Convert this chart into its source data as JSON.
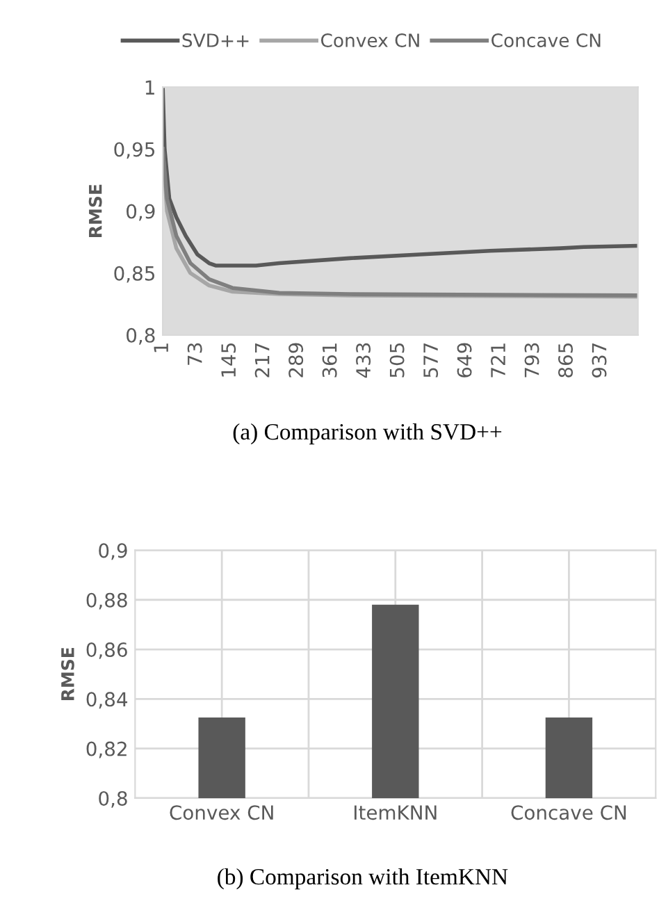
{
  "chart_data": [
    {
      "type": "line",
      "title": "(a) Comparison with SVD++",
      "ylabel": "RMSE",
      "legend": "top",
      "grid": false,
      "xlim": [
        1,
        1016
      ],
      "xticks": [
        1,
        73,
        145,
        217,
        289,
        361,
        433,
        505,
        577,
        649,
        721,
        793,
        865,
        937
      ],
      "ylim": [
        0.8,
        1
      ],
      "yticks": [
        {
          "value": 0.8,
          "label": "0,8"
        },
        {
          "value": 0.85,
          "label": "0,85"
        },
        {
          "value": 0.9,
          "label": "0,9"
        },
        {
          "value": 0.95,
          "label": "0,95"
        },
        {
          "value": 1,
          "label": "1"
        }
      ],
      "series": [
        {
          "name": "SVD++",
          "color": "#595959",
          "x": [
            1,
            5,
            15,
            30,
            50,
            75,
            100,
            115,
            200,
            250,
            400,
            550,
            700,
            850,
            900,
            1016
          ],
          "values": [
            1.0,
            0.95,
            0.91,
            0.895,
            0.88,
            0.865,
            0.858,
            0.856,
            0.856,
            0.858,
            0.862,
            0.865,
            0.868,
            0.87,
            0.871,
            0.872
          ]
        },
        {
          "name": "Convex CN",
          "color": "#a6a6a6",
          "x": [
            1,
            10,
            30,
            60,
            100,
            150,
            250,
            400,
            1016
          ],
          "values": [
            0.95,
            0.9,
            0.87,
            0.85,
            0.84,
            0.835,
            0.833,
            0.832,
            0.831
          ]
        },
        {
          "name": "Concave CN",
          "color": "#7f7f7f",
          "x": [
            1,
            10,
            30,
            60,
            100,
            150,
            250,
            400,
            1016
          ],
          "values": [
            0.95,
            0.91,
            0.88,
            0.858,
            0.845,
            0.838,
            0.834,
            0.833,
            0.832
          ]
        }
      ]
    },
    {
      "type": "bar",
      "title": "(b) Comparison with ItemKNN",
      "ylabel": "RMSE",
      "grid": true,
      "categories": [
        "Convex CN",
        "ItemKNN",
        "Concave CN"
      ],
      "values": [
        0.8325,
        0.878,
        0.8325
      ],
      "color": "#595959",
      "ylim": [
        0.8,
        0.9
      ],
      "yticks": [
        {
          "value": 0.8,
          "label": "0,8"
        },
        {
          "value": 0.82,
          "label": "0,82"
        },
        {
          "value": 0.84,
          "label": "0,84"
        },
        {
          "value": 0.86,
          "label": "0,86"
        },
        {
          "value": 0.88,
          "label": "0,88"
        },
        {
          "value": 0.9,
          "label": "0,9"
        }
      ]
    }
  ]
}
